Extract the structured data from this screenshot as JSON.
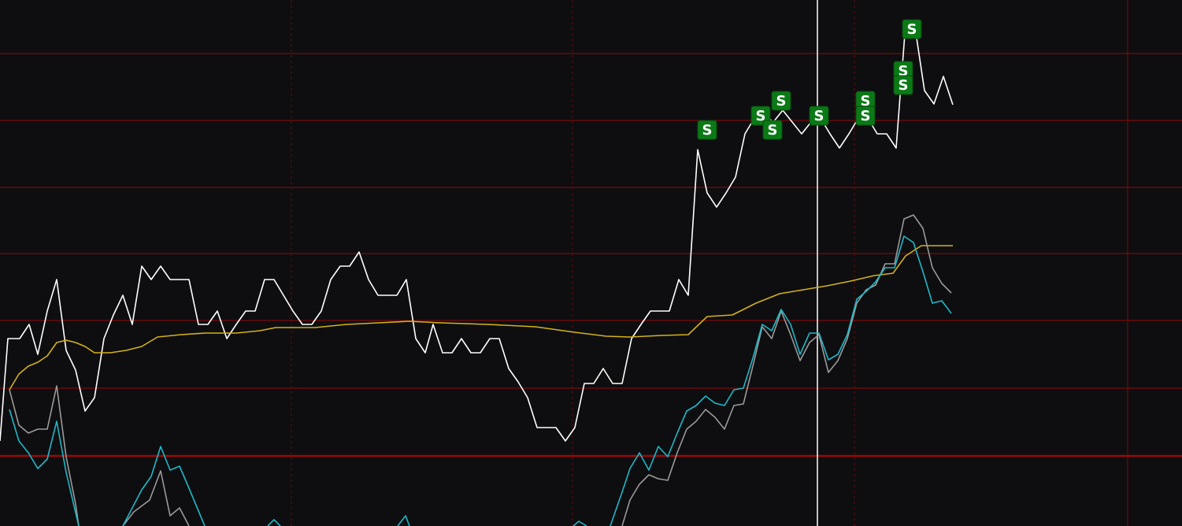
{
  "chart_data": {
    "type": "line",
    "xlim": [
      0,
      1501
    ],
    "ylim": [
      668,
      0
    ],
    "yticks": [
      68,
      153,
      238,
      322,
      407,
      493,
      579
    ],
    "xticks": [
      370,
      727,
      1085,
      1432
    ],
    "grid": true,
    "cursor_x": 1038,
    "series": [
      {
        "color": "#ffffff",
        "x": [
          0,
          10,
          25,
          37,
          48,
          60,
          72,
          84,
          96,
          108,
          120,
          132,
          144,
          156,
          168,
          180,
          192,
          204,
          216,
          228,
          240,
          252,
          264,
          276,
          288,
          300,
          312,
          324,
          336,
          348,
          360,
          372,
          384,
          396,
          408,
          420,
          432,
          444,
          456,
          468,
          480,
          492,
          504,
          516,
          528,
          540,
          550,
          562,
          574,
          586,
          598,
          610,
          622,
          634,
          646,
          658,
          670,
          682,
          694,
          706,
          718,
          730,
          742,
          754,
          766,
          778,
          790,
          802,
          814,
          826,
          838,
          850,
          862,
          874,
          886,
          898,
          910,
          922,
          934,
          946,
          958,
          970,
          982,
          994,
          1006,
          1018,
          1030,
          1042,
          1054,
          1066,
          1078,
          1090,
          1102,
          1114,
          1126,
          1138,
          1150,
          1162,
          1174,
          1186,
          1198,
          1210
        ],
        "values": [
          560,
          430,
          430,
          412,
          450,
          395,
          355,
          445,
          470,
          522,
          505,
          430,
          400,
          375,
          412,
          338,
          355,
          338,
          355,
          355,
          355,
          412,
          412,
          395,
          430,
          412,
          395,
          395,
          355,
          355,
          375,
          395,
          412,
          412,
          395,
          355,
          338,
          338,
          320,
          355,
          375,
          375,
          375,
          355,
          430,
          448,
          412,
          448,
          448,
          430,
          448,
          448,
          430,
          430,
          468,
          485,
          505,
          543,
          543,
          543,
          560,
          543,
          487,
          487,
          468,
          487,
          487,
          430,
          412,
          395,
          395,
          395,
          355,
          375,
          190,
          245,
          263,
          245,
          225,
          170,
          150,
          145,
          155,
          140,
          155,
          170,
          155,
          150,
          170,
          188,
          170,
          150,
          150,
          170,
          170,
          188,
          30,
          35,
          115,
          132,
          97,
          133
        ]
      },
      {
        "color": "#d4b21a",
        "x": [
          12,
          24,
          36,
          48,
          60,
          72,
          84,
          96,
          108,
          120,
          140,
          160,
          180,
          200,
          230,
          260,
          300,
          330,
          350,
          400,
          440,
          480,
          520,
          560,
          620,
          680,
          730,
          770,
          800,
          840,
          874,
          898,
          930,
          960,
          990,
          1020,
          1050,
          1080,
          1110,
          1134,
          1150,
          1170,
          1210
        ],
        "values": [
          495,
          475,
          465,
          460,
          452,
          435,
          432,
          435,
          440,
          448,
          448,
          445,
          440,
          428,
          425,
          423,
          423,
          420,
          416,
          416,
          412,
          410,
          408,
          410,
          412,
          415,
          422,
          427,
          428,
          426,
          425,
          402,
          400,
          385,
          373,
          368,
          363,
          357,
          350,
          347,
          325,
          312,
          312
        ]
      },
      {
        "color": "#9a9a9a",
        "x": [
          12,
          24,
          36,
          48,
          60,
          72,
          84,
          96,
          100,
          120,
          156,
          170,
          190,
          204,
          216,
          228,
          240,
          500,
          790,
          800,
          812,
          824,
          836,
          848,
          860,
          872,
          884,
          896,
          908,
          920,
          932,
          944,
          956,
          968,
          980,
          992,
          1004,
          1016,
          1028,
          1040,
          1052,
          1064,
          1076,
          1088,
          1100,
          1112,
          1124,
          1136,
          1148,
          1160,
          1172,
          1184,
          1196,
          1208
        ],
        "values": [
          495,
          540,
          550,
          545,
          545,
          490,
          580,
          640,
          668,
          null,
          668,
          650,
          635,
          598,
          655,
          645,
          668,
          null,
          668,
          635,
          615,
          603,
          608,
          610,
          575,
          545,
          535,
          520,
          530,
          545,
          515,
          513,
          465,
          415,
          430,
          395,
          425,
          458,
          435,
          425,
          473,
          458,
          430,
          385,
          368,
          362,
          335,
          335,
          278,
          273,
          290,
          340,
          360,
          372
        ]
      },
      {
        "color": "#1fb8c8",
        "x": [
          12,
          24,
          36,
          48,
          60,
          72,
          84,
          100,
          120,
          156,
          168,
          180,
          192,
          204,
          216,
          228,
          240,
          260,
          300,
          340,
          348,
          356,
          400,
          505,
          515,
          520,
          600,
          728,
          735,
          745,
          760,
          775,
          790,
          800,
          812,
          824,
          836,
          848,
          860,
          872,
          884,
          896,
          908,
          920,
          932,
          944,
          956,
          968,
          980,
          992,
          1004,
          1016,
          1028,
          1040,
          1052,
          1064,
          1076,
          1088,
          1100,
          1112,
          1124,
          1136,
          1148,
          1160,
          1172,
          1184,
          1196,
          1208
        ],
        "values": [
          520,
          560,
          575,
          595,
          583,
          535,
          600,
          668,
          null,
          668,
          645,
          622,
          605,
          567,
          597,
          592,
          620,
          668,
          null,
          668,
          660,
          668,
          null,
          668,
          655,
          668,
          null,
          668,
          662,
          668,
          null,
          668,
          625,
          595,
          575,
          597,
          567,
          580,
          550,
          522,
          515,
          503,
          512,
          515,
          495,
          493,
          455,
          412,
          420,
          393,
          412,
          450,
          423,
          423,
          457,
          450,
          425,
          380,
          370,
          358,
          340,
          340,
          300,
          308,
          345,
          385,
          382,
          398
        ]
      }
    ],
    "signals": {
      "label": "S",
      "x": [
        898,
        966,
        981,
        992,
        1040,
        1099,
        1099,
        1147,
        1147,
        1158
      ],
      "values": [
        165,
        147,
        165,
        128,
        147,
        128,
        147,
        90,
        108,
        37
      ]
    }
  }
}
